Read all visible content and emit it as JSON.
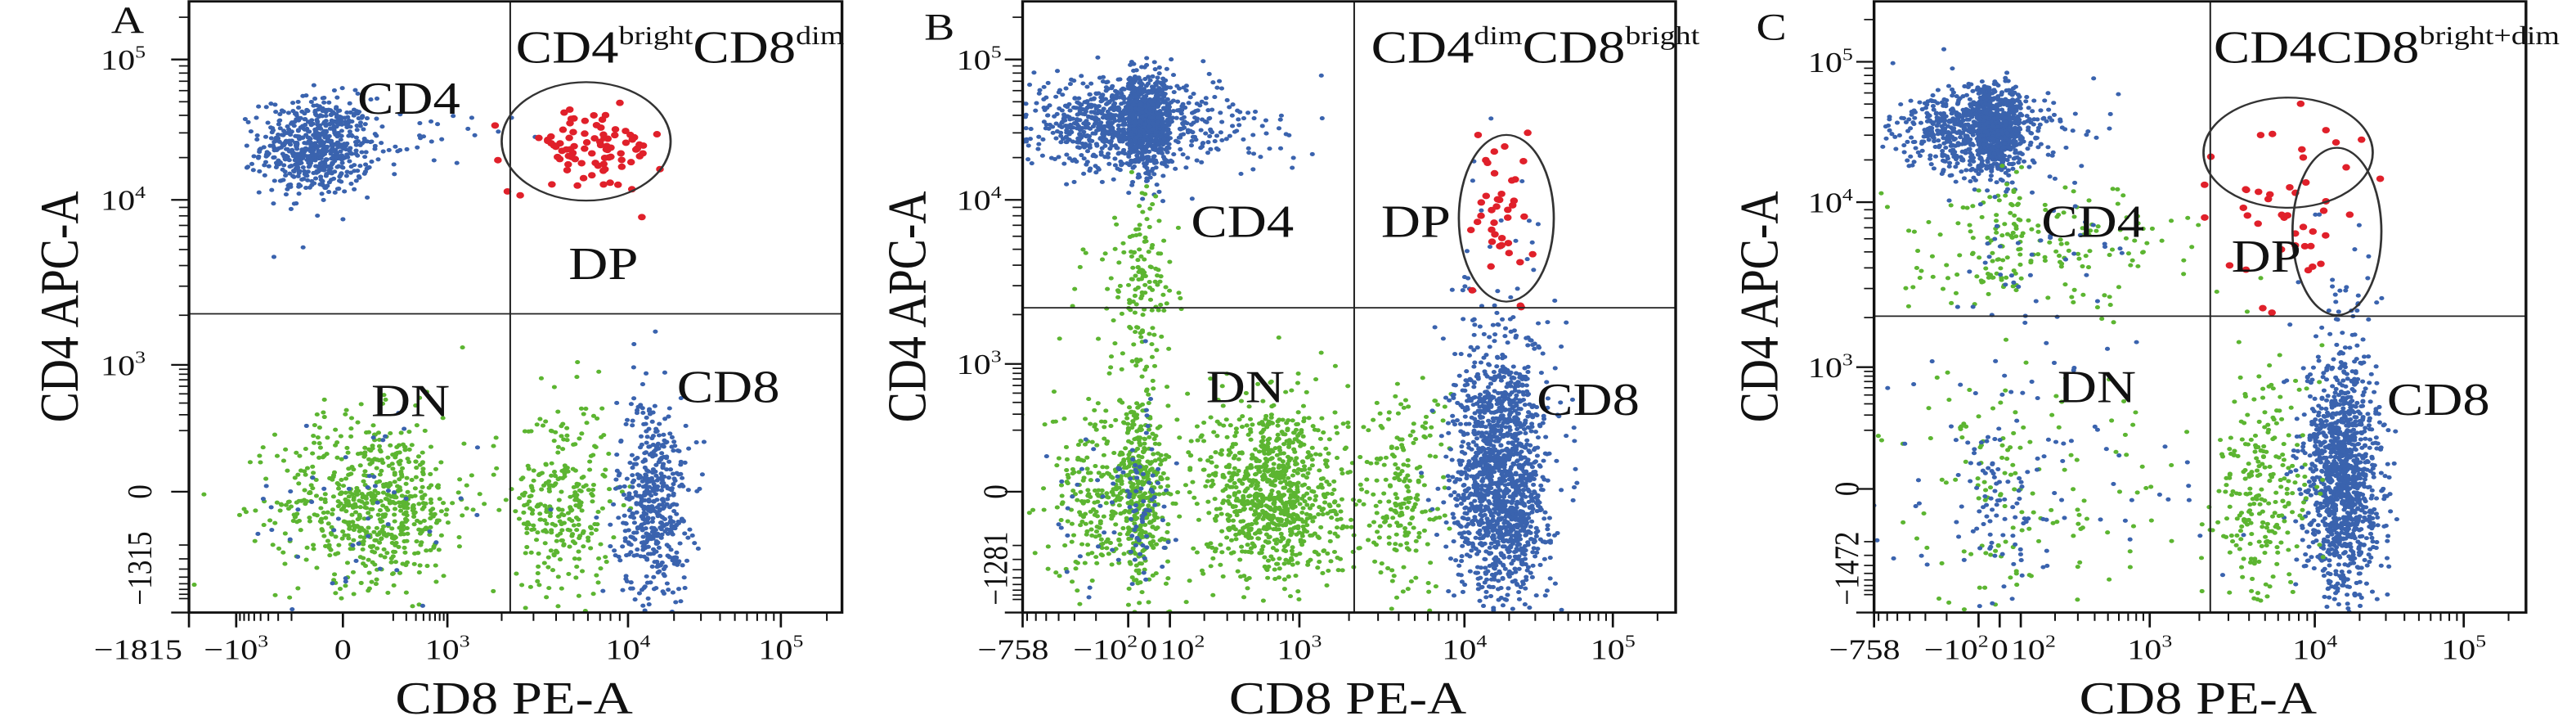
{
  "colors": {
    "blue": "#3a63ae",
    "green": "#5cb531",
    "red": "#e0202a",
    "line": "#222222"
  },
  "chart_data": [
    {
      "type": "scatter",
      "panel": "A",
      "title_parts": [
        {
          "text": "CD4",
          "sup": false
        },
        {
          "text": "bright",
          "sup": true
        },
        {
          "text": "CD8",
          "sup": false
        },
        {
          "text": "dim",
          "sup": true
        }
      ],
      "xlabel": "CD8 PE-A",
      "ylabel": "CD4 APC-A",
      "x_scale": "biexponential",
      "y_scale": "biexponential",
      "x_ticks": [
        {
          "value": -1815,
          "base": "−1815",
          "exp": ""
        },
        {
          "value": -1000,
          "base": "−10",
          "exp": "3"
        },
        {
          "value": 0,
          "base": "0",
          "exp": ""
        },
        {
          "value": 1000,
          "base": "10",
          "exp": "3"
        },
        {
          "value": 10000,
          "base": "10",
          "exp": "4"
        },
        {
          "value": 100000,
          "base": "10",
          "exp": "5"
        }
      ],
      "y_ticks": [
        {
          "value": -1315,
          "base": "−1315",
          "exp": ""
        },
        {
          "value": 0,
          "base": "0",
          "exp": ""
        },
        {
          "value": 1000,
          "base": "10",
          "exp": "3"
        },
        {
          "value": 10000,
          "base": "10",
          "exp": "4"
        },
        {
          "value": 100000,
          "base": "10",
          "exp": "5"
        }
      ],
      "quadrant_gate": {
        "x": 2230,
        "y": 2040
      },
      "ellipse_gates": [
        {
          "x": [
            2000,
            19000
          ],
          "y": [
            9900,
            69000
          ]
        }
      ],
      "quadrant_labels": {
        "CD4": "CD4",
        "DP": "DP",
        "DN": "DN",
        "CD8": "CD8"
      },
      "populations": [
        {
          "color": "blue",
          "n": 650,
          "x": [
            -490,
            96
          ],
          "y": [
            10800,
            53000
          ]
        },
        {
          "color": "blue",
          "n": 25,
          "x": [
            100,
            2200
          ],
          "y": [
            18000,
            42000
          ]
        },
        {
          "color": "red",
          "n": 90,
          "x": [
            2250,
            17000
          ],
          "y": [
            11200,
            46000
          ]
        },
        {
          "color": "green",
          "n": 650,
          "x": [
            -310,
            1960
          ],
          "y": [
            -550,
            280
          ]
        },
        {
          "color": "green",
          "n": 280,
          "x": [
            2400,
            8000
          ],
          "y": [
            -900,
            450
          ]
        },
        {
          "color": "blue",
          "n": 500,
          "x": [
            8700,
            25000
          ],
          "y": [
            -1040,
            490
          ]
        },
        {
          "color": "blue",
          "n": 50,
          "x": [
            -800,
            3000
          ],
          "y": [
            -1100,
            400
          ]
        }
      ]
    },
    {
      "type": "scatter",
      "panel": "B",
      "title_parts": [
        {
          "text": "CD4",
          "sup": false
        },
        {
          "text": "dim",
          "sup": true
        },
        {
          "text": "CD8",
          "sup": false
        },
        {
          "text": "bright",
          "sup": true
        }
      ],
      "xlabel": "CD8 PE-A",
      "ylabel": "CD4 APC-A",
      "x_scale": "biexponential",
      "y_scale": "biexponential",
      "x_ticks": [
        {
          "value": -758,
          "base": "−758",
          "exp": ""
        },
        {
          "value": -100,
          "base": "−10",
          "exp": "2"
        },
        {
          "value": 0,
          "base": "0",
          "exp": ""
        },
        {
          "value": 100,
          "base": "10",
          "exp": "2"
        },
        {
          "value": 1000,
          "base": "10",
          "exp": "3"
        },
        {
          "value": 10000,
          "base": "10",
          "exp": "4"
        },
        {
          "value": 100000,
          "base": "10",
          "exp": "5"
        }
      ],
      "y_ticks": [
        {
          "value": -1281,
          "base": "−1281",
          "exp": ""
        },
        {
          "value": 0,
          "base": "0",
          "exp": ""
        },
        {
          "value": 1000,
          "base": "10",
          "exp": "3"
        },
        {
          "value": 10000,
          "base": "10",
          "exp": "4"
        },
        {
          "value": 100000,
          "base": "10",
          "exp": "5"
        }
      ],
      "quadrant_gate": {
        "x": 2150,
        "y": 2200
      },
      "ellipse_gates": [
        {
          "x": [
            9250,
            40000
          ],
          "y": [
            2400,
            29000
          ]
        }
      ],
      "quadrant_labels": {
        "CD4": "CD4",
        "DP": "DP",
        "DN": "DN",
        "CD8": "CD8"
      },
      "populations": [
        {
          "color": "blue",
          "n": 1500,
          "x": [
            -650,
            240
          ],
          "y": [
            17000,
            72000
          ]
        },
        {
          "color": "blue",
          "n": 20,
          "x": [
            240,
            1500
          ],
          "y": [
            15000,
            45000
          ]
        },
        {
          "color": "green",
          "n": 150,
          "x": [
            -250,
            120
          ],
          "y": [
            900,
            10000
          ]
        },
        {
          "color": "green",
          "n": 600,
          "x": [
            -500,
            100
          ],
          "y": [
            -540,
            480
          ]
        },
        {
          "color": "blue",
          "n": 100,
          "x": [
            -500,
            100
          ],
          "y": [
            -800,
            300
          ]
        },
        {
          "color": "green",
          "n": 900,
          "x": [
            200,
            1960
          ],
          "y": [
            -540,
            480
          ]
        },
        {
          "color": "green",
          "n": 200,
          "x": [
            2300,
            7900
          ],
          "y": [
            -900,
            700
          ]
        },
        {
          "color": "blue",
          "n": 1500,
          "x": [
            8600,
            36000
          ],
          "y": [
            -1000,
            1960
          ]
        },
        {
          "color": "red",
          "n": 40,
          "x": [
            10000,
            30000
          ],
          "y": [
            2540,
            27000
          ]
        }
      ]
    },
    {
      "type": "scatter",
      "panel": "C",
      "title_parts": [
        {
          "text": "CD4CD8",
          "sup": false
        },
        {
          "text": "bright+dim",
          "sup": true
        }
      ],
      "xlabel": "CD8 PE-A",
      "ylabel": "CD4 APC-A",
      "x_scale": "biexponential",
      "y_scale": "biexponential",
      "x_ticks": [
        {
          "value": -758,
          "base": "−758",
          "exp": ""
        },
        {
          "value": -100,
          "base": "−10",
          "exp": "2"
        },
        {
          "value": 0,
          "base": "0",
          "exp": ""
        },
        {
          "value": 100,
          "base": "10",
          "exp": "2"
        },
        {
          "value": 1000,
          "base": "10",
          "exp": "3"
        },
        {
          "value": 10000,
          "base": "10",
          "exp": "4"
        },
        {
          "value": 100000,
          "base": "10",
          "exp": "5"
        }
      ],
      "y_ticks": [
        {
          "value": -1472,
          "base": "−1472",
          "exp": ""
        },
        {
          "value": 0,
          "base": "0",
          "exp": ""
        },
        {
          "value": 1000,
          "base": "10",
          "exp": "3"
        },
        {
          "value": 10000,
          "base": "10",
          "exp": "4"
        },
        {
          "value": 100000,
          "base": "10",
          "exp": "5"
        }
      ],
      "quadrant_gate": {
        "x": 2330,
        "y": 2040
      },
      "ellipse_gates": [
        {
          "x": [
            2120,
            24500
          ],
          "y": [
            9250,
            55600
          ]
        },
        {
          "x": [
            7330,
            28000
          ],
          "y": [
            2070,
            24400
          ]
        }
      ],
      "quadrant_labels": {
        "CD4": "CD4",
        "DP": "DP",
        "DN": "DN",
        "CD8": "CD8"
      },
      "populations": [
        {
          "color": "blue",
          "n": 1200,
          "x": [
            -470,
            185
          ],
          "y": [
            16400,
            65000
          ]
        },
        {
          "color": "green",
          "n": 200,
          "x": [
            -430,
            1900
          ],
          "y": [
            2300,
            13000
          ]
        },
        {
          "color": "blue",
          "n": 40,
          "x": [
            -430,
            1900
          ],
          "y": [
            2300,
            13000
          ]
        },
        {
          "color": "green",
          "n": 150,
          "x": [
            -700,
            1900
          ],
          "y": [
            -1200,
            1500
          ]
        },
        {
          "color": "blue",
          "n": 150,
          "x": [
            -700,
            1900
          ],
          "y": [
            -1200,
            1500
          ]
        },
        {
          "color": "blue",
          "n": 1200,
          "x": [
            8900,
            26900
          ],
          "y": [
            -1030,
            1800
          ]
        },
        {
          "color": "green",
          "n": 250,
          "x": [
            2500,
            9700
          ],
          "y": [
            -1100,
            800
          ]
        },
        {
          "color": "red",
          "n": 45,
          "x": [
            2360,
            18000
          ],
          "y": [
            2300,
            38000
          ]
        }
      ]
    }
  ]
}
